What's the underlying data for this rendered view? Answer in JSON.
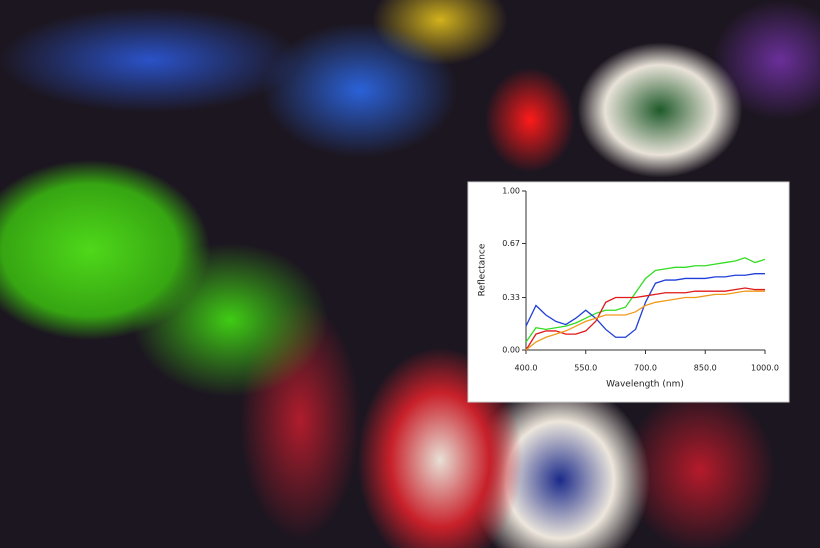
{
  "chart_data": {
    "type": "line",
    "x_label": "Wavelength (nm)",
    "y_label": "Reflectance",
    "x": [
      400,
      425,
      450,
      475,
      500,
      525,
      550,
      575,
      600,
      625,
      650,
      675,
      700,
      725,
      750,
      775,
      800,
      825,
      850,
      875,
      900,
      925,
      950,
      975,
      1000
    ],
    "series": [
      {
        "color": "#33dd22",
        "values": [
          0.05,
          0.14,
          0.13,
          0.14,
          0.15,
          0.17,
          0.2,
          0.23,
          0.25,
          0.25,
          0.27,
          0.36,
          0.45,
          0.5,
          0.51,
          0.52,
          0.52,
          0.53,
          0.53,
          0.54,
          0.55,
          0.56,
          0.58,
          0.55,
          0.57
        ]
      },
      {
        "color": "#1f3fd8",
        "values": [
          0.15,
          0.28,
          0.22,
          0.18,
          0.16,
          0.2,
          0.25,
          0.2,
          0.13,
          0.08,
          0.08,
          0.13,
          0.3,
          0.42,
          0.44,
          0.44,
          0.45,
          0.45,
          0.45,
          0.46,
          0.46,
          0.47,
          0.47,
          0.48,
          0.48
        ]
      },
      {
        "color": "#e01a1a",
        "values": [
          0.0,
          0.1,
          0.12,
          0.12,
          0.1,
          0.1,
          0.12,
          0.18,
          0.3,
          0.33,
          0.33,
          0.33,
          0.34,
          0.35,
          0.36,
          0.36,
          0.36,
          0.37,
          0.37,
          0.37,
          0.37,
          0.38,
          0.39,
          0.38,
          0.38
        ]
      },
      {
        "color": "#f09a1a",
        "values": [
          0.0,
          0.05,
          0.08,
          0.1,
          0.12,
          0.15,
          0.18,
          0.2,
          0.22,
          0.22,
          0.22,
          0.24,
          0.28,
          0.3,
          0.31,
          0.32,
          0.33,
          0.33,
          0.34,
          0.35,
          0.35,
          0.36,
          0.37,
          0.37,
          0.37
        ]
      }
    ],
    "xlim": [
      400,
      1000
    ],
    "xticks": [
      {
        "value": 400,
        "label": "400.0"
      },
      {
        "value": 550,
        "label": "550.0"
      },
      {
        "value": 700,
        "label": "700.0"
      },
      {
        "value": 850,
        "label": "850.0"
      },
      {
        "value": 1000,
        "label": "1000.0"
      }
    ],
    "ylim": [
      0,
      1
    ],
    "yticks": [
      {
        "value": 0,
        "label": "0.00"
      },
      {
        "value": 0.33,
        "label": "0.33"
      },
      {
        "value": 0.67,
        "label": "0.67"
      },
      {
        "value": 1,
        "label": "1.00"
      }
    ]
  }
}
